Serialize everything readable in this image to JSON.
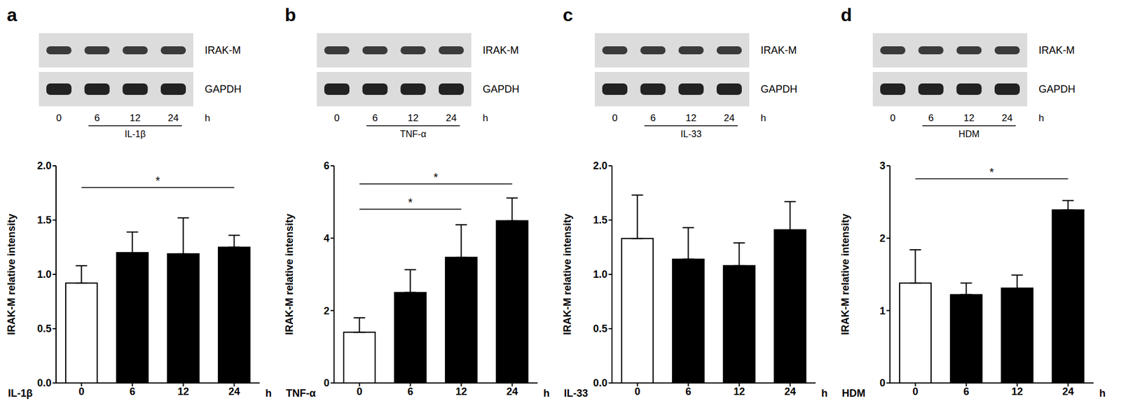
{
  "chart_data": [
    {
      "type": "bar",
      "title": "a",
      "blot_bands": [
        "IRAK-M",
        "GAPDH"
      ],
      "xlabel": "IL-1β",
      "x_unit": "h",
      "ylabel": "IRAK-M relative intensity",
      "categories": [
        "0",
        "6",
        "12",
        "24"
      ],
      "values": [
        0.92,
        1.2,
        1.19,
        1.25
      ],
      "errors": [
        0.16,
        0.19,
        0.33,
        0.11
      ],
      "colors": [
        "#ffffff",
        "#000000",
        "#000000",
        "#000000"
      ],
      "ylim": [
        0,
        2
      ],
      "yticks": [
        {
          "value": 0,
          "label": "0.0"
        },
        0.5,
        {
          "value": 1,
          "label": "1.0"
        },
        1.5,
        {
          "value": 2,
          "label": "2.0"
        }
      ],
      "annotations": [
        {
          "from": "0",
          "to": "24",
          "y": 1.8,
          "text": "*"
        }
      ]
    },
    {
      "type": "bar",
      "title": "b",
      "blot_bands": [
        "IRAK-M",
        "GAPDH"
      ],
      "xlabel": "TNF-α",
      "x_unit": "h",
      "ylabel": "IRAK-M relative intensity",
      "categories": [
        "0",
        "6",
        "12",
        "24"
      ],
      "values": [
        1.4,
        2.5,
        3.47,
        4.48
      ],
      "errors": [
        0.4,
        0.63,
        0.9,
        0.63
      ],
      "colors": [
        "#ffffff",
        "#000000",
        "#000000",
        "#000000"
      ],
      "ylim": [
        0,
        6
      ],
      "yticks": [
        0,
        2,
        4,
        6
      ],
      "annotations": [
        {
          "from": "0",
          "to": "12",
          "y": 4.8,
          "text": "*"
        },
        {
          "from": "0",
          "to": "24",
          "y": 5.5,
          "text": "*"
        }
      ]
    },
    {
      "type": "bar",
      "title": "c",
      "blot_bands": [
        "IRAK-M",
        "GAPDH"
      ],
      "xlabel": "IL-33",
      "x_unit": "h",
      "ylabel": "IRAK-M relative intensity",
      "categories": [
        "0",
        "6",
        "12",
        "24"
      ],
      "values": [
        1.33,
        1.14,
        1.08,
        1.41
      ],
      "errors": [
        0.4,
        0.29,
        0.21,
        0.26
      ],
      "colors": [
        "#ffffff",
        "#000000",
        "#000000",
        "#000000"
      ],
      "ylim": [
        0,
        2
      ],
      "yticks": [
        {
          "value": 0,
          "label": "0.0"
        },
        0.5,
        {
          "value": 1,
          "label": "1.0"
        },
        1.5,
        {
          "value": 2,
          "label": "2.0"
        }
      ],
      "annotations": []
    },
    {
      "type": "bar",
      "title": "d",
      "blot_bands": [
        "IRAK-M",
        "GAPDH"
      ],
      "xlabel": "HDM",
      "x_unit": "h",
      "ylabel": "IRAK-M relative intensity",
      "categories": [
        "0",
        "6",
        "12",
        "24"
      ],
      "values": [
        1.38,
        1.22,
        1.31,
        2.39
      ],
      "errors": [
        0.46,
        0.16,
        0.18,
        0.13
      ],
      "colors": [
        "#ffffff",
        "#000000",
        "#000000",
        "#000000"
      ],
      "ylim": [
        0,
        3
      ],
      "yticks": [
        0,
        1,
        2,
        3
      ],
      "annotations": [
        {
          "from": "0",
          "to": "24",
          "y": 2.82,
          "text": "*"
        }
      ]
    }
  ]
}
